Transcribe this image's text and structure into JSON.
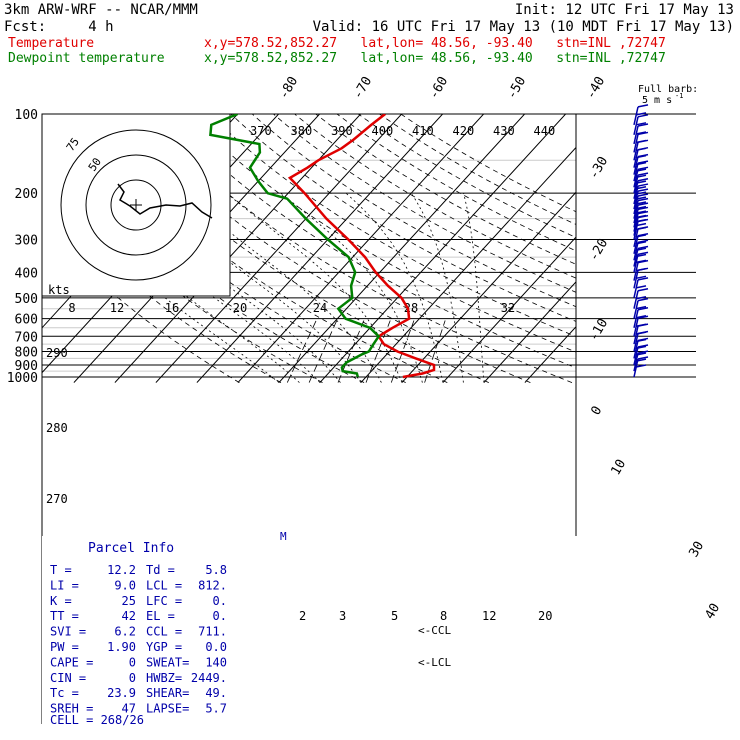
{
  "header": {
    "line1_left": "3km ARW-WRF -- NCAR/MMM",
    "line1_right": "Init: 12 UTC Fri 17 May 13",
    "line2_left": "Fcst:     4 h",
    "line2_right": "Valid: 16 UTC Fri 17 May 13 (10 MDT Fri 17 May 13)",
    "temp_label": "Temperature",
    "temp_info": "x,y=578.52,852.27   lat,lon= 48.56, -93.40   stn=INL ,72747",
    "dew_label": "Dewpoint temperature",
    "dew_info": "x,y=578.52,852.27   lat,lon= 48.56, -93.40   stn=INL ,72747"
  },
  "colors": {
    "temperature": "#e00000",
    "dewpoint": "#008000",
    "hodograph": "#000000",
    "barb": "#0000aa"
  },
  "chart_data": {
    "type": "line",
    "diagram": "skew-T log-p",
    "pressure_levels": [
      "100",
      "200",
      "300",
      "400",
      "500",
      "600",
      "700",
      "800",
      "900",
      "1000"
    ],
    "temp_axis_labels": [
      "-80",
      "-70",
      "-60",
      "-50",
      "-40",
      "-30",
      "-20",
      "-10",
      "0",
      "10",
      "30",
      "40"
    ],
    "theta_labels": [
      "370",
      "380",
      "390",
      "400",
      "410",
      "420",
      "430",
      "440"
    ],
    "theta_left_labels": [
      "290",
      "280",
      "270"
    ],
    "mixing_ratio_labels": [
      "2",
      "3",
      "5",
      "8",
      "12",
      "20"
    ],
    "kts_label": "kts",
    "hodo_speed_labels": [
      "8",
      "12",
      "16",
      "20",
      "24",
      "28",
      "32"
    ],
    "hodo_ring_labels": [
      "75",
      "50"
    ],
    "lcl_label": "<-LCL",
    "ccl_label": "<-CCL",
    "series": [
      {
        "name": "Temperature",
        "points": [
          [
            1000,
            19
          ],
          [
            970,
            23
          ],
          [
            940,
            25
          ],
          [
            900,
            23.9
          ],
          [
            850,
            18
          ],
          [
            800,
            12
          ],
          [
            750,
            7
          ],
          [
            700,
            4
          ],
          [
            650,
            5.5
          ],
          [
            600,
            7.5
          ],
          [
            550,
            5
          ],
          [
            500,
            1
          ],
          [
            450,
            -5
          ],
          [
            400,
            -11
          ],
          [
            350,
            -17
          ],
          [
            300,
            -25
          ],
          [
            250,
            -35
          ],
          [
            200,
            -46
          ],
          [
            175,
            -53
          ],
          [
            160,
            -51
          ],
          [
            150,
            -50
          ],
          [
            135,
            -47
          ],
          [
            125,
            -46
          ],
          [
            110,
            -45
          ],
          [
            100,
            -44
          ]
        ]
      },
      {
        "name": "Dewpoint temperature",
        "points": [
          [
            1000,
            8
          ],
          [
            970,
            7
          ],
          [
            950,
            3
          ],
          [
            920,
            2
          ],
          [
            900,
            2
          ],
          [
            880,
            2
          ],
          [
            850,
            3
          ],
          [
            820,
            4
          ],
          [
            800,
            5
          ],
          [
            750,
            4.5
          ],
          [
            700,
            4
          ],
          [
            650,
            0
          ],
          [
            600,
            -8
          ],
          [
            550,
            -12
          ],
          [
            500,
            -11
          ],
          [
            450,
            -14
          ],
          [
            400,
            -16
          ],
          [
            350,
            -21
          ],
          [
            300,
            -30
          ],
          [
            250,
            -40
          ],
          [
            210,
            -49
          ],
          [
            200,
            -55
          ],
          [
            180,
            -60
          ],
          [
            160,
            -65
          ],
          [
            140,
            -66
          ],
          [
            130,
            -68
          ],
          [
            120,
            -82
          ],
          [
            110,
            -84
          ],
          [
            100,
            -80
          ]
        ]
      }
    ],
    "wind_barb_levels": [
      110,
      120,
      130,
      140,
      150,
      160,
      170,
      180,
      190,
      200,
      210,
      220,
      230,
      240,
      250,
      260,
      270,
      280,
      290,
      300,
      320,
      340,
      360,
      380,
      400,
      430,
      460,
      500,
      550,
      600,
      650,
      700,
      750,
      800,
      850,
      900,
      950,
      1000
    ]
  },
  "parcel_info": {
    "title": "Parcel Info",
    "rows": [
      [
        "T  =",
        "12.2",
        "Td =",
        "5.8"
      ],
      [
        "LI =",
        "9.0",
        "LCL =",
        "812."
      ],
      [
        "K  =",
        "25",
        "LFC =",
        "0."
      ],
      [
        "TT =",
        "42",
        "EL =",
        "0."
      ],
      [
        "SVI =",
        "6.2",
        "CCL =",
        "711."
      ],
      [
        "PW =",
        "1.90",
        "YGP =",
        "0.0"
      ],
      [
        "CAPE =",
        "0",
        "SWEAT=",
        "140"
      ],
      [
        "CIN =",
        "0",
        "HWBZ=",
        "2449."
      ],
      [
        "Tc =",
        "23.9",
        "SHEAR=",
        "49."
      ],
      [
        "SREH =",
        "47",
        "LAPSE=",
        "5.7"
      ]
    ],
    "cell": "CELL = 268/26"
  },
  "legend_barb": {
    "line1": "Full barb:",
    "line2": "5 m s",
    "sup": "-1"
  }
}
